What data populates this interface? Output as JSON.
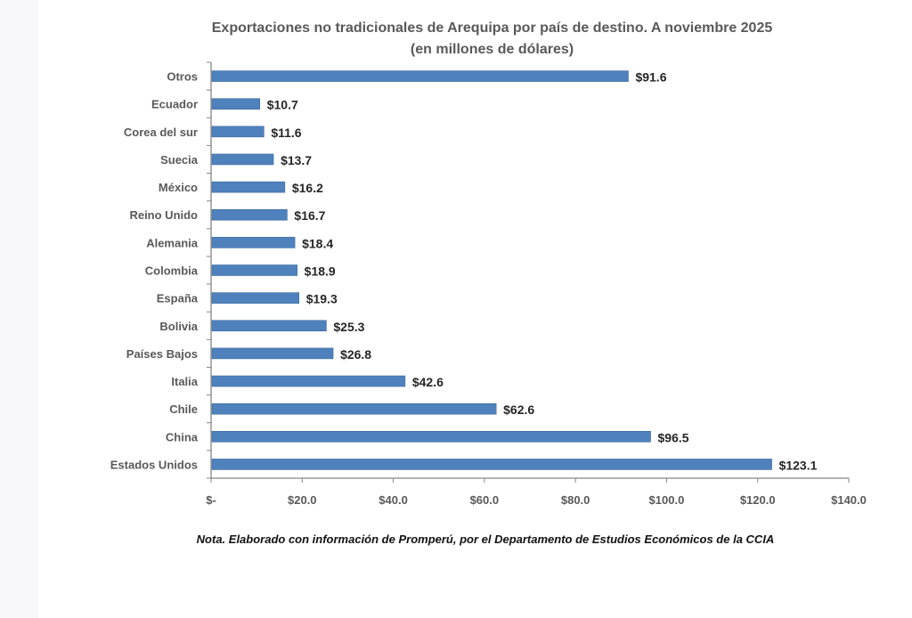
{
  "chart_data": {
    "type": "bar",
    "orientation": "horizontal",
    "title": "Exportaciones no tradicionales de Arequipa por país de destino. A noviembre 2025",
    "subtitle": "(en millones de dólares)",
    "categories": [
      "Otros",
      "Ecuador",
      "Corea del sur",
      "Suecia",
      "México",
      "Reino Unido",
      "Alemania",
      "Colombia",
      "España",
      "Bolivia",
      "Países Bajos",
      "Italia",
      "Chile",
      "China",
      "Estados Unidos"
    ],
    "values": [
      91.6,
      10.7,
      11.6,
      13.7,
      16.2,
      16.7,
      18.4,
      18.9,
      19.3,
      25.3,
      26.8,
      42.6,
      62.6,
      96.5,
      123.1
    ],
    "data_labels": [
      "$91.6",
      "$10.7",
      "$11.6",
      "$13.7",
      "$16.2",
      "$16.7",
      "$18.4",
      "$18.9",
      "$19.3",
      "$25.3",
      "$26.8",
      "$42.6",
      "$62.6",
      "$96.5",
      "$123.1"
    ],
    "xlim": [
      0,
      140
    ],
    "x_ticks": [
      0,
      20,
      40,
      60,
      80,
      100,
      120,
      140
    ],
    "x_tick_labels": [
      "$-",
      "$20.0",
      "$40.0",
      "$60.0",
      "$80.0",
      "$100.0",
      "$120.0",
      "$140.0"
    ],
    "xlabel": "",
    "ylabel": "",
    "grid": false,
    "bar_color": "#4f81bd"
  },
  "note": "Nota. Elaborado con información de Promperú, por el Departamento de Estudios Económicos de la CCIA"
}
